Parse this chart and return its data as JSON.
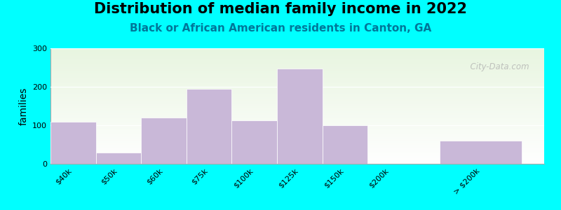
{
  "title": "Distribution of median family income in 2022",
  "subtitle": "Black or African American residents in Canton, GA",
  "ylabel": "families",
  "background_outer": "#00FFFF",
  "bg_top": "#e8f5e0",
  "bg_bottom": "#ffffff",
  "bar_color": "#c9b8d8",
  "categories": [
    "$40k",
    "$50k",
    "$60k",
    "$75k",
    "$100k",
    "$125k",
    "$150k",
    "$200k",
    "> $200k"
  ],
  "values": [
    110,
    30,
    120,
    195,
    113,
    248,
    100,
    0,
    60
  ],
  "bar_positions": [
    0,
    1,
    2,
    3,
    4,
    5,
    6,
    7,
    9
  ],
  "bar_widths": [
    1,
    1,
    1,
    1,
    1,
    1,
    1,
    1,
    1.8
  ],
  "xlim": [
    -0.5,
    10.4
  ],
  "ylim": [
    0,
    300
  ],
  "yticks": [
    0,
    100,
    200,
    300
  ],
  "title_fontsize": 15,
  "subtitle_fontsize": 11,
  "ylabel_fontsize": 10,
  "tick_label_fontsize": 8,
  "watermark_text": "  City-Data.com"
}
